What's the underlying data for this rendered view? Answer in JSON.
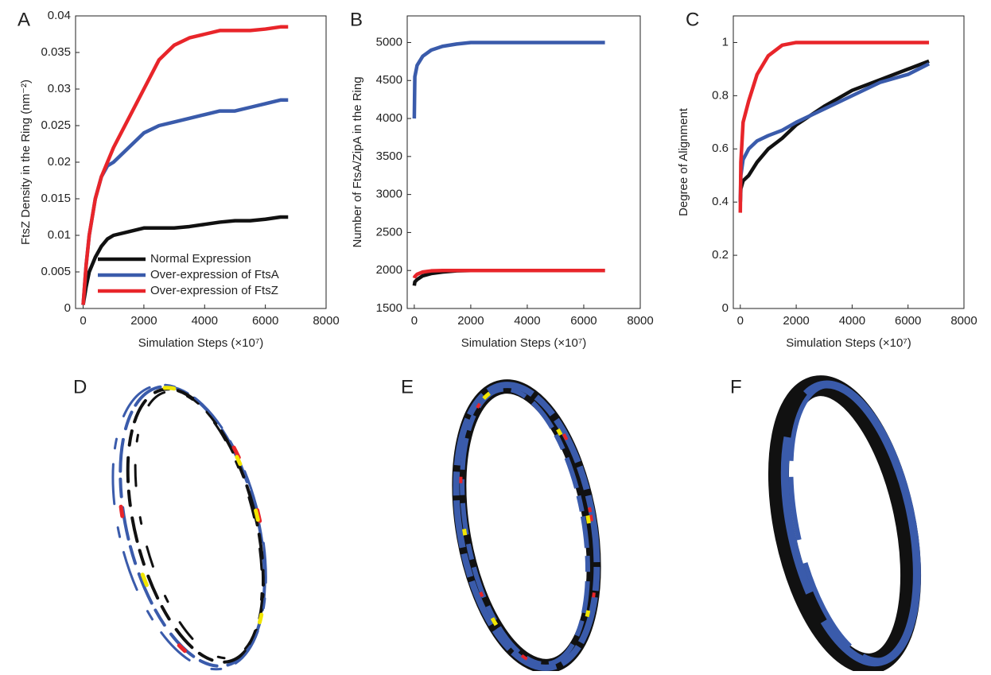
{
  "chart_data": [
    {
      "type": "line",
      "label": "A",
      "ylabel": "FtsZ Density in the Ring (nm⁻²)",
      "xlabel": "Simulation Steps (×10⁷)",
      "x": [
        0,
        100,
        200,
        400,
        600,
        800,
        1000,
        1500,
        2000,
        2500,
        3000,
        3500,
        4000,
        4500,
        5000,
        5500,
        6000,
        6500,
        6750
      ],
      "xlim": [
        -250,
        8000
      ],
      "xticks": [
        0,
        2000,
        4000,
        6000,
        8000
      ],
      "ylim": [
        0,
        0.04
      ],
      "yticks": [
        0,
        0.005,
        0.01,
        0.015,
        0.02,
        0.025,
        0.03,
        0.035,
        0.04
      ],
      "legend": "lower right",
      "series": [
        {
          "name": "Normal Expression",
          "color": "#111111",
          "values": [
            0.0005,
            0.003,
            0.005,
            0.007,
            0.0085,
            0.0095,
            0.01,
            0.0105,
            0.011,
            0.011,
            0.011,
            0.0112,
            0.0115,
            0.0118,
            0.012,
            0.012,
            0.0122,
            0.0125,
            0.0125
          ]
        },
        {
          "name": "Over-expression of FtsA",
          "color": "#3a5bab",
          "values": [
            0.0005,
            0.006,
            0.01,
            0.015,
            0.018,
            0.0195,
            0.02,
            0.022,
            0.024,
            0.025,
            0.0255,
            0.026,
            0.0265,
            0.027,
            0.027,
            0.0275,
            0.028,
            0.0285,
            0.0285
          ]
        },
        {
          "name": "Over-expression of FtsZ",
          "color": "#e8252a",
          "values": [
            0.0005,
            0.006,
            0.01,
            0.015,
            0.018,
            0.02,
            0.022,
            0.026,
            0.03,
            0.034,
            0.036,
            0.037,
            0.0375,
            0.038,
            0.038,
            0.038,
            0.0382,
            0.0385,
            0.0385
          ]
        }
      ]
    },
    {
      "type": "line",
      "label": "B",
      "ylabel": "Number of FtsA/ZipA in the Ring",
      "xlabel": "Simulation Steps (×10⁷)",
      "x": [
        0,
        20,
        100,
        300,
        600,
        1000,
        1500,
        2000,
        4000,
        6750
      ],
      "xlim": [
        -250,
        8000
      ],
      "xticks": [
        0,
        2000,
        4000,
        6000,
        8000
      ],
      "ylim": [
        1500,
        5350
      ],
      "yticks": [
        1500,
        2000,
        2500,
        3000,
        3500,
        4000,
        4500,
        5000
      ],
      "series": [
        {
          "color": "#111111",
          "values": [
            1800,
            1850,
            1880,
            1930,
            1960,
            1980,
            1995,
            2000,
            2000,
            2000
          ]
        },
        {
          "color": "#e8252a",
          "values": [
            1900,
            1920,
            1950,
            1980,
            1995,
            2000,
            2000,
            2000,
            2000,
            2000
          ]
        },
        {
          "color": "#3a5bab",
          "values": [
            4000,
            4550,
            4700,
            4820,
            4900,
            4950,
            4980,
            5000,
            5000,
            5000
          ]
        }
      ]
    },
    {
      "type": "line",
      "label": "C",
      "ylabel": "Degree of Alignment",
      "xlabel": "Simulation Steps (×10⁷)",
      "x": [
        0,
        20,
        100,
        300,
        600,
        1000,
        1500,
        2000,
        3000,
        4000,
        5000,
        6000,
        6750
      ],
      "xlim": [
        -250,
        8000
      ],
      "xticks": [
        0,
        2000,
        4000,
        6000,
        8000
      ],
      "ylim": [
        0,
        1.1
      ],
      "yticks": [
        0,
        0.2,
        0.4,
        0.6,
        0.8,
        1
      ],
      "series": [
        {
          "color": "#111111",
          "values": [
            0.4,
            0.45,
            0.48,
            0.5,
            0.55,
            0.6,
            0.64,
            0.69,
            0.76,
            0.82,
            0.86,
            0.9,
            0.93
          ]
        },
        {
          "color": "#3a5bab",
          "values": [
            0.4,
            0.5,
            0.56,
            0.6,
            0.63,
            0.65,
            0.67,
            0.7,
            0.75,
            0.8,
            0.85,
            0.88,
            0.92
          ]
        },
        {
          "color": "#e8252a",
          "values": [
            0.36,
            0.55,
            0.7,
            0.78,
            0.88,
            0.95,
            0.99,
            1,
            1,
            1,
            1,
            1,
            1
          ]
        }
      ]
    }
  ],
  "images": [
    {
      "label": "D"
    },
    {
      "label": "E"
    },
    {
      "label": "F"
    }
  ]
}
